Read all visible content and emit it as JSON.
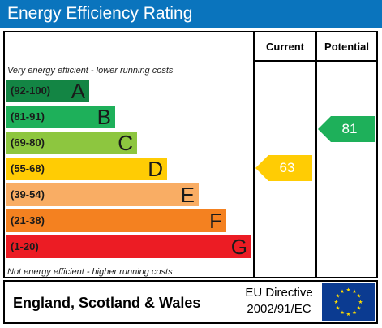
{
  "header": {
    "title": "Energy Efficiency Rating"
  },
  "columns": {
    "current": "Current",
    "potential": "Potential"
  },
  "notes": {
    "top": "Very energy efficient - lower running costs",
    "bottom": "Not energy efficient - higher running costs"
  },
  "bands": [
    {
      "range": "(92-100)",
      "letter": "A",
      "color": "#138544"
    },
    {
      "range": "(81-91)",
      "letter": "B",
      "color": "#1eb05a"
    },
    {
      "range": "(69-80)",
      "letter": "C",
      "color": "#8dc63f"
    },
    {
      "range": "(55-68)",
      "letter": "D",
      "color": "#ffcc04"
    },
    {
      "range": "(39-54)",
      "letter": "E",
      "color": "#f9ad64"
    },
    {
      "range": "(21-38)",
      "letter": "F",
      "color": "#f48120"
    },
    {
      "range": "(1-20)",
      "letter": "G",
      "color": "#ec1c24"
    }
  ],
  "current": {
    "value": "63",
    "color": "#ffcc04"
  },
  "potential": {
    "value": "81",
    "color": "#1eb05a"
  },
  "footer": {
    "region": "England, Scotland & Wales",
    "directive_line1": "EU Directive",
    "directive_line2": "2002/91/EC"
  },
  "eu_flag": {
    "background": "#0b3b91",
    "stars": "#ffdd00"
  }
}
